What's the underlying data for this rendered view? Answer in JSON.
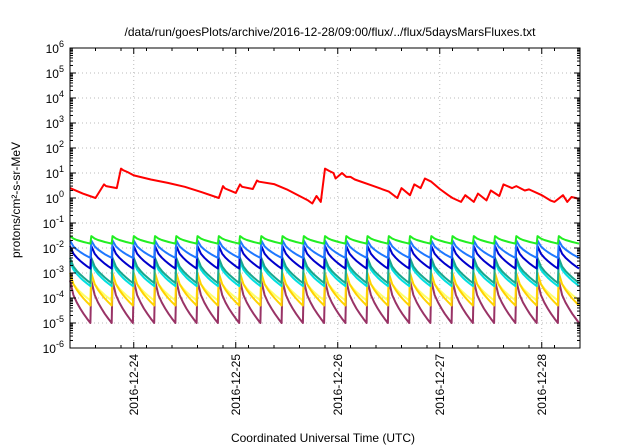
{
  "chart_data": {
    "type": "line",
    "title": "/data/run/goesPlots/archive/2016-12-28/09:00/flux/../flux/5daysMarsFluxes.txt",
    "xlabel": "Coordinated Universal Time (UTC)",
    "ylabel": "protons/cm²-s-sr-MeV",
    "yscale": "log",
    "ylim": [
      1e-06,
      1000000
    ],
    "xlim": [
      "2016-12-23 09:00",
      "2016-12-28 09:00"
    ],
    "x_ticks": [
      "2016-12-24",
      "2016-12-25",
      "2016-12-26",
      "2016-12-27",
      "2016-12-28"
    ],
    "y_tick_exponents": [
      "-6",
      "-5",
      "-4",
      "-3",
      "-2",
      "-1",
      "0",
      "1",
      "2",
      "3",
      "4",
      "5",
      "6"
    ],
    "y_tick_base": "10",
    "grid": true,
    "legend": "none",
    "series": [
      {
        "color": "#ff0000",
        "x": [
          "2016-12-23 09:00",
          "2016-12-23 12:00",
          "2016-12-23 15:00",
          "2016-12-23 17:00",
          "2016-12-23 17:30",
          "2016-12-23 20:00",
          "2016-12-23 21:00",
          "2016-12-23 21:30",
          "2016-12-23 22:30",
          "2016-12-24 00:00",
          "2016-12-24 04:00",
          "2016-12-24 08:00",
          "2016-12-24 12:00",
          "2016-12-24 16:00",
          "2016-12-24 20:00",
          "2016-12-24 21:00",
          "2016-12-24 21:30",
          "2016-12-25 00:00",
          "2016-12-25 01:00",
          "2016-12-25 01:30",
          "2016-12-25 04:00",
          "2016-12-25 05:00",
          "2016-12-25 05:30",
          "2016-12-25 09:00",
          "2016-12-25 12:00",
          "2016-12-25 15:00",
          "2016-12-25 17:00",
          "2016-12-25 18:00",
          "2016-12-25 19:00",
          "2016-12-25 20:00",
          "2016-12-25 21:00",
          "2016-12-25 22:00",
          "2016-12-25 23:00",
          "2016-12-25 23:30",
          "2016-12-26 01:00",
          "2016-12-26 02:00",
          "2016-12-26 03:00",
          "2016-12-26 04:00",
          "2016-12-26 08:00",
          "2016-12-26 12:00",
          "2016-12-26 14:00",
          "2016-12-26 15:00",
          "2016-12-26 17:00",
          "2016-12-26 18:00",
          "2016-12-26 19:30",
          "2016-12-26 20:30",
          "2016-12-26 22:00",
          "2016-12-27 00:00",
          "2016-12-27 02:00",
          "2016-12-27 03:00",
          "2016-12-27 05:00",
          "2016-12-27 06:00",
          "2016-12-27 08:00",
          "2016-12-27 09:00",
          "2016-12-27 11:00",
          "2016-12-27 12:00",
          "2016-12-27 14:00",
          "2016-12-27 15:00",
          "2016-12-27 17:00",
          "2016-12-27 18:00",
          "2016-12-27 20:00",
          "2016-12-27 21:00",
          "2016-12-28 00:00",
          "2016-12-28 02:00",
          "2016-12-28 03:00",
          "2016-12-28 05:00",
          "2016-12-28 06:00",
          "2016-12-28 07:00",
          "2016-12-28 08:00",
          "2016-12-28 09:00"
        ],
        "values": [
          2.5,
          1.5,
          1.0,
          3.5,
          3.0,
          2.5,
          15,
          13,
          11,
          8,
          5.5,
          4,
          2.8,
          1.7,
          1.0,
          3.0,
          2.4,
          1.6,
          3.5,
          2.8,
          2.3,
          5.0,
          4.5,
          3.6,
          2.2,
          1.2,
          0.8,
          0.6,
          1.2,
          0.7,
          15,
          12,
          10,
          6,
          10,
          7,
          7,
          5.5,
          3.2,
          1.8,
          1.0,
          2.5,
          1.3,
          3.5,
          2.5,
          6,
          4.5,
          2.3,
          1.3,
          1.0,
          0.7,
          1.3,
          0.7,
          1.5,
          0.8,
          2.0,
          1.2,
          3.5,
          2.5,
          3.0,
          2.0,
          2.2,
          1.3,
          0.8,
          0.7,
          1.3,
          0.7,
          1.1,
          1.0,
          0.9
        ]
      },
      {
        "color": "#22ee22",
        "pattern": "sawtooth",
        "peak": 0.03,
        "trough": 0.015,
        "cycle_hours": 5
      },
      {
        "color": "#1f78ff",
        "pattern": "sawtooth",
        "peak": 0.02,
        "trough": 0.004,
        "cycle_hours": 5
      },
      {
        "color": "#0000cc",
        "pattern": "sawtooth",
        "peak": 0.012,
        "trough": 0.0015,
        "cycle_hours": 5
      },
      {
        "color": "#1aa68c",
        "pattern": "sawtooth",
        "peak": 0.004,
        "trough": 0.0004,
        "cycle_hours": 5
      },
      {
        "color": "#00e0e0",
        "pattern": "sawtooth",
        "peak": 0.003,
        "trough": 0.0003,
        "cycle_hours": 5
      },
      {
        "color": "#ffd200",
        "pattern": "sawtooth",
        "peak": 0.001,
        "trough": 5e-05,
        "cycle_hours": 5
      },
      {
        "color": "#ffff66",
        "pattern": "sawtooth",
        "peak": 0.0008,
        "trough": 8e-05,
        "cycle_hours": 5
      },
      {
        "color": "#993366",
        "pattern": "sawtooth",
        "peak": 0.0005,
        "trough": 1e-05,
        "cycle_hours": 5
      }
    ]
  }
}
